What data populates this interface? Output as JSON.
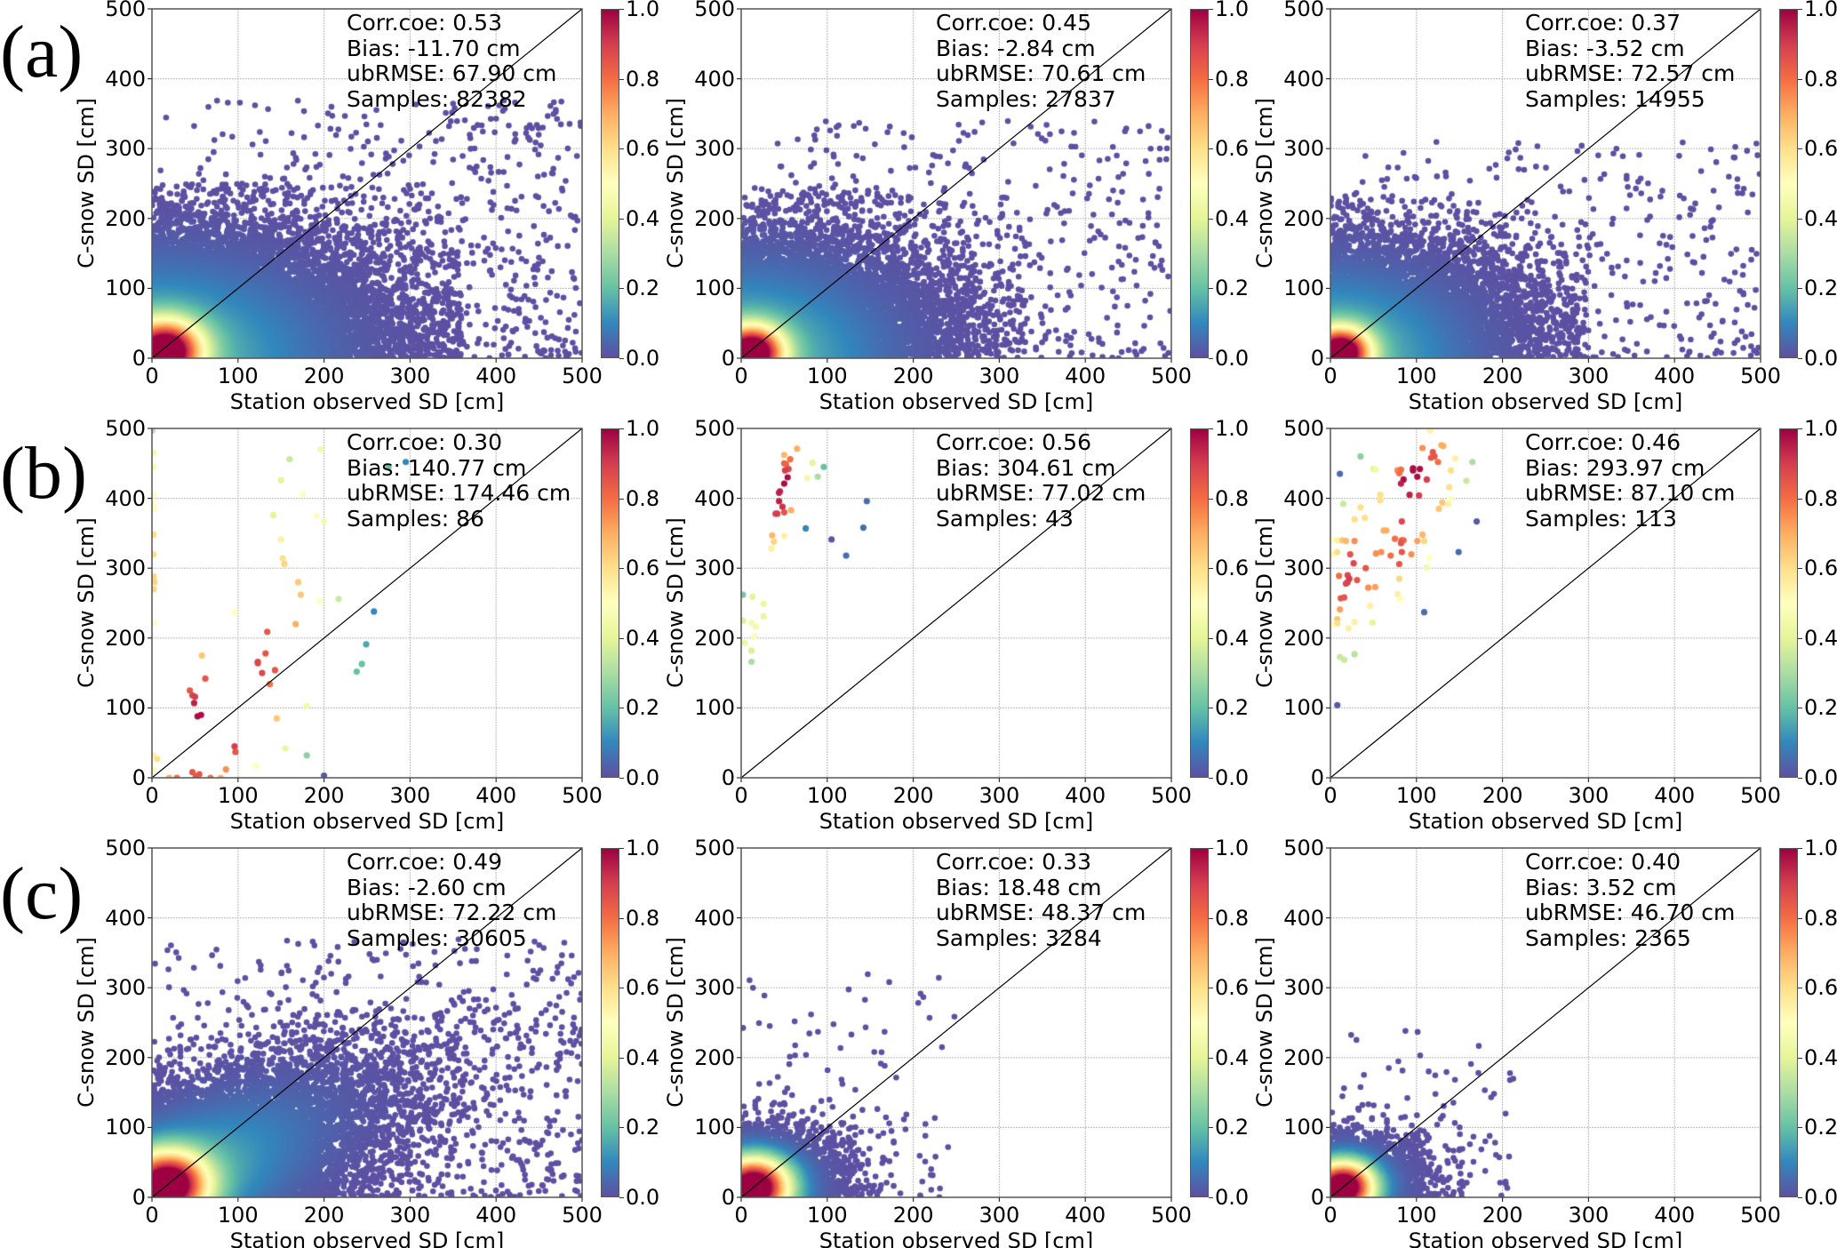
{
  "figure": {
    "row_labels": [
      "(a)",
      "(b)",
      "(c)"
    ],
    "colormap": [
      "#5e4fa2",
      "#3288bd",
      "#66c2a5",
      "#abdda4",
      "#e6f598",
      "#ffffbf",
      "#fee08b",
      "#fdae61",
      "#f46d43",
      "#d53e4f",
      "#9e0142"
    ]
  },
  "axes": {
    "xlabel": "Station observed SD [cm]",
    "ylabel": "C-snow SD [cm]",
    "xlim": [
      0,
      500
    ],
    "ylim": [
      0,
      500
    ],
    "xticks": [
      "0",
      "100",
      "200",
      "300",
      "400",
      "500"
    ],
    "yticks": [
      "0",
      "100",
      "200",
      "300",
      "400",
      "500"
    ],
    "colorbar_ticks": [
      "0.0",
      "0.2",
      "0.4",
      "0.6",
      "0.8",
      "1.0"
    ],
    "grid": true,
    "reference_line": "1:1"
  },
  "chart_data": [
    {
      "type": "scatter",
      "row": "(a)",
      "col": 1,
      "kind": "density",
      "stats": {
        "corr": "Corr.coe: 0.53",
        "bias": "Bias: -11.70 cm",
        "ubrmse": "ubRMSE: 67.90 cm",
        "samples": "Samples: 82382"
      }
    },
    {
      "type": "scatter",
      "row": "(a)",
      "col": 2,
      "kind": "density",
      "stats": {
        "corr": "Corr.coe: 0.45",
        "bias": "Bias: -2.84 cm",
        "ubrmse": "ubRMSE: 70.61 cm",
        "samples": "Samples: 27837"
      }
    },
    {
      "type": "scatter",
      "row": "(a)",
      "col": 3,
      "kind": "density",
      "stats": {
        "corr": "Corr.coe: 0.37",
        "bias": "Bias: -3.52 cm",
        "ubrmse": "ubRMSE: 72.57 cm",
        "samples": "Samples: 14955"
      }
    },
    {
      "type": "scatter",
      "row": "(b)",
      "col": 1,
      "kind": "points",
      "stats": {
        "corr": "Corr.coe: 0.30",
        "bias": "Bias: 140.77 cm",
        "ubrmse": "ubRMSE: 174.46 cm",
        "samples": "Samples: 86"
      },
      "points": [
        [
          0,
          497,
          0.3
        ],
        [
          2,
          465,
          0.45
        ],
        [
          2,
          445,
          0.48
        ],
        [
          2,
          405,
          0.5
        ],
        [
          2,
          390,
          0.5
        ],
        [
          2,
          385,
          0.5
        ],
        [
          2,
          348,
          0.6
        ],
        [
          2,
          320,
          0.6
        ],
        [
          2,
          288,
          0.62
        ],
        [
          3,
          280,
          0.62
        ],
        [
          2,
          270,
          0.62
        ],
        [
          2,
          222,
          0.5
        ],
        [
          2,
          32,
          0.55
        ],
        [
          6,
          27,
          0.6
        ],
        [
          2,
          12,
          0.5
        ],
        [
          196,
          470,
          0.45
        ],
        [
          160,
          456,
          0.35
        ],
        [
          150,
          426,
          0.4
        ],
        [
          175,
          406,
          0.5
        ],
        [
          141,
          376,
          0.4
        ],
        [
          191,
          375,
          0.5
        ],
        [
          200,
          367,
          0.45
        ],
        [
          150,
          341,
          0.55
        ],
        [
          152,
          314,
          0.6
        ],
        [
          154,
          306,
          0.62
        ],
        [
          170,
          280,
          0.65
        ],
        [
          173,
          262,
          0.65
        ],
        [
          195,
          253,
          0.5
        ],
        [
          217,
          256,
          0.35
        ],
        [
          96,
          237,
          0.5
        ],
        [
          167,
          220,
          0.7
        ],
        [
          134,
          209,
          0.85
        ],
        [
          58,
          175,
          0.65
        ],
        [
          132,
          178,
          0.85
        ],
        [
          123,
          166,
          0.88
        ],
        [
          123,
          164,
          0.88
        ],
        [
          128,
          150,
          0.88
        ],
        [
          143,
          154,
          0.85
        ],
        [
          62,
          142,
          0.85
        ],
        [
          137,
          134,
          0.8
        ],
        [
          44,
          125,
          0.85
        ],
        [
          47,
          118,
          0.88
        ],
        [
          50,
          116,
          0.9
        ],
        [
          49,
          107,
          0.95
        ],
        [
          53,
          88,
          0.98
        ],
        [
          57,
          90,
          0.98
        ],
        [
          180,
          103,
          0.45
        ],
        [
          145,
          85,
          0.65
        ],
        [
          96,
          45,
          0.9
        ],
        [
          97,
          37,
          0.85
        ],
        [
          155,
          42,
          0.42
        ],
        [
          180,
          32,
          0.25
        ],
        [
          121,
          17,
          0.5
        ],
        [
          86,
          12,
          0.75
        ],
        [
          47,
          8,
          0.85
        ],
        [
          55,
          5,
          0.85
        ],
        [
          20,
          0,
          0.7
        ],
        [
          29,
          0,
          0.8
        ],
        [
          68,
          0,
          0.8
        ],
        [
          80,
          0,
          0.7
        ],
        [
          51,
          2,
          0.85
        ],
        [
          200,
          3,
          0.02
        ],
        [
          295,
          452,
          0.1
        ],
        [
          275,
          445,
          0.2
        ],
        [
          258,
          238,
          0.1
        ],
        [
          249,
          191,
          0.15
        ],
        [
          244,
          163,
          0.2
        ],
        [
          238,
          152,
          0.2
        ]
      ]
    },
    {
      "type": "scatter",
      "row": "(b)",
      "col": 2,
      "kind": "points",
      "stats": {
        "corr": "Corr.coe: 0.56",
        "bias": "Bias: 304.61 cm",
        "ubrmse": "ubRMSE: 77.02 cm",
        "samples": "Samples: 43"
      },
      "points": [
        [
          65,
          471,
          0.7
        ],
        [
          50,
          462,
          0.68
        ],
        [
          57,
          456,
          0.8
        ],
        [
          50,
          450,
          0.82
        ],
        [
          52,
          449,
          0.82
        ],
        [
          83,
          451,
          0.4
        ],
        [
          96,
          445,
          0.2
        ],
        [
          55,
          442,
          0.88
        ],
        [
          51,
          440,
          0.9
        ],
        [
          54,
          430,
          0.98
        ],
        [
          77,
          429,
          0.45
        ],
        [
          89,
          431,
          0.3
        ],
        [
          50,
          421,
          0.98
        ],
        [
          45,
          410,
          0.95
        ],
        [
          44,
          408,
          0.95
        ],
        [
          44,
          396,
          0.95
        ],
        [
          48,
          388,
          0.92
        ],
        [
          40,
          378,
          0.9
        ],
        [
          42,
          378,
          0.9
        ],
        [
          50,
          380,
          0.85
        ],
        [
          58,
          383,
          0.7
        ],
        [
          146,
          396,
          0.05
        ],
        [
          75,
          357,
          0.1
        ],
        [
          142,
          358,
          0.05
        ],
        [
          36,
          347,
          0.68
        ],
        [
          38,
          338,
          0.62
        ],
        [
          35,
          328,
          0.55
        ],
        [
          50,
          346,
          0.55
        ],
        [
          105,
          341,
          0.02
        ],
        [
          122,
          318,
          0.05
        ],
        [
          2,
          262,
          0.22
        ],
        [
          13,
          259,
          0.4
        ],
        [
          26,
          249,
          0.42
        ],
        [
          26,
          231,
          0.42
        ],
        [
          2,
          225,
          0.38
        ],
        [
          12,
          222,
          0.45
        ],
        [
          17,
          216,
          0.45
        ],
        [
          15,
          202,
          0.48
        ],
        [
          4,
          193,
          0.42
        ],
        [
          12,
          182,
          0.38
        ],
        [
          12,
          166,
          0.3
        ]
      ]
    },
    {
      "type": "scatter",
      "row": "(b)",
      "col": 3,
      "kind": "points",
      "stats": {
        "corr": "Corr.coe: 0.46",
        "bias": "Bias: 293.97 cm",
        "ubrmse": "ubRMSE: 87.10 cm",
        "samples": "Samples: 113"
      },
      "points": [
        [
          116,
          497,
          0.55
        ],
        [
          107,
          472,
          0.75
        ],
        [
          131,
          475,
          0.7
        ],
        [
          129,
          476,
          0.7
        ],
        [
          119,
          466,
          0.85
        ],
        [
          117,
          458,
          0.85
        ],
        [
          121,
          460,
          0.85
        ],
        [
          125,
          452,
          0.8
        ],
        [
          35,
          460,
          0.25
        ],
        [
          145,
          457,
          0.55
        ],
        [
          165,
          452,
          0.3
        ],
        [
          11,
          435,
          0.05
        ],
        [
          50,
          442,
          0.4
        ],
        [
          53,
          441,
          0.45
        ],
        [
          78,
          440,
          0.75
        ],
        [
          82,
          441,
          0.8
        ],
        [
          80,
          436,
          0.8
        ],
        [
          96,
          440,
          0.98
        ],
        [
          96,
          443,
          0.98
        ],
        [
          104,
          442,
          0.98
        ],
        [
          101,
          431,
          0.98
        ],
        [
          112,
          427,
          0.9
        ],
        [
          85,
          427,
          0.98
        ],
        [
          82,
          421,
          0.95
        ],
        [
          140,
          440,
          0.6
        ],
        [
          158,
          425,
          0.35
        ],
        [
          138,
          416,
          0.6
        ],
        [
          58,
          405,
          0.6
        ],
        [
          58,
          397,
          0.6
        ],
        [
          92,
          405,
          0.95
        ],
        [
          103,
          404,
          0.9
        ],
        [
          15,
          392,
          0.35
        ],
        [
          130,
          394,
          0.65
        ],
        [
          137,
          392,
          0.55
        ],
        [
          140,
          400,
          0.5
        ],
        [
          126,
          385,
          0.65
        ],
        [
          35,
          387,
          0.6
        ],
        [
          28,
          370,
          0.6
        ],
        [
          40,
          372,
          0.6
        ],
        [
          83,
          367,
          0.88
        ],
        [
          170,
          367,
          0.02
        ],
        [
          62,
          354,
          0.7
        ],
        [
          65,
          354,
          0.7
        ],
        [
          2,
          341,
          0.5
        ],
        [
          8,
          340,
          0.55
        ],
        [
          14,
          340,
          0.65
        ],
        [
          18,
          339,
          0.68
        ],
        [
          28,
          339,
          0.75
        ],
        [
          75,
          342,
          0.8
        ],
        [
          83,
          340,
          0.85
        ],
        [
          85,
          340,
          0.82
        ],
        [
          82,
          336,
          0.85
        ],
        [
          101,
          339,
          0.72
        ],
        [
          109,
          339,
          0.62
        ],
        [
          107,
          348,
          0.68
        ],
        [
          3,
          320,
          0.52
        ],
        [
          8,
          323,
          0.6
        ],
        [
          23,
          320,
          0.85
        ],
        [
          59,
          323,
          0.75
        ],
        [
          53,
          321,
          0.75
        ],
        [
          70,
          318,
          0.8
        ],
        [
          83,
          323,
          0.85
        ],
        [
          94,
          320,
          0.75
        ],
        [
          149,
          323,
          0.05
        ],
        [
          115,
          315,
          0.5
        ],
        [
          27,
          307,
          0.88
        ],
        [
          80,
          306,
          0.85
        ],
        [
          112,
          301,
          0.45
        ],
        [
          41,
          300,
          0.85
        ],
        [
          10,
          289,
          0.8
        ],
        [
          20,
          290,
          0.88
        ],
        [
          31,
          283,
          0.85
        ],
        [
          22,
          285,
          0.9
        ],
        [
          20,
          280,
          0.9
        ],
        [
          18,
          278,
          0.88
        ],
        [
          80,
          285,
          0.62
        ],
        [
          44,
          272,
          0.75
        ],
        [
          52,
          273,
          0.72
        ],
        [
          78,
          263,
          0.55
        ],
        [
          82,
          256,
          0.5
        ],
        [
          80,
          255,
          0.5
        ],
        [
          12,
          257,
          0.85
        ],
        [
          16,
          258,
          0.85
        ],
        [
          46,
          246,
          0.55
        ],
        [
          11,
          241,
          0.72
        ],
        [
          109,
          237,
          0.05
        ],
        [
          8,
          227,
          0.65
        ],
        [
          28,
          223,
          0.55
        ],
        [
          3,
          219,
          0.5
        ],
        [
          8,
          221,
          0.6
        ],
        [
          21,
          214,
          0.55
        ],
        [
          49,
          222,
          0.4
        ],
        [
          11,
          173,
          0.35
        ],
        [
          16,
          169,
          0.35
        ],
        [
          28,
          177,
          0.32
        ],
        [
          8,
          104,
          0.02
        ]
      ]
    },
    {
      "type": "scatter",
      "row": "(c)",
      "col": 1,
      "kind": "density",
      "stats": {
        "corr": "Corr.coe: 0.49",
        "bias": "Bias: -2.60 cm",
        "ubrmse": "ubRMSE: 72.22 cm",
        "samples": "Samples: 30605"
      }
    },
    {
      "type": "scatter",
      "row": "(c)",
      "col": 2,
      "kind": "density",
      "stats": {
        "corr": "Corr.coe: 0.33",
        "bias": "Bias: 18.48 cm",
        "ubrmse": "ubRMSE: 48.37 cm",
        "samples": "Samples: 3284"
      }
    },
    {
      "type": "scatter",
      "row": "(c)",
      "col": 3,
      "kind": "density",
      "stats": {
        "corr": "Corr.coe: 0.40",
        "bias": "Bias: 3.52 cm",
        "ubrmse": "ubRMSE: 46.70 cm",
        "samples": "Samples: 2365"
      }
    }
  ]
}
